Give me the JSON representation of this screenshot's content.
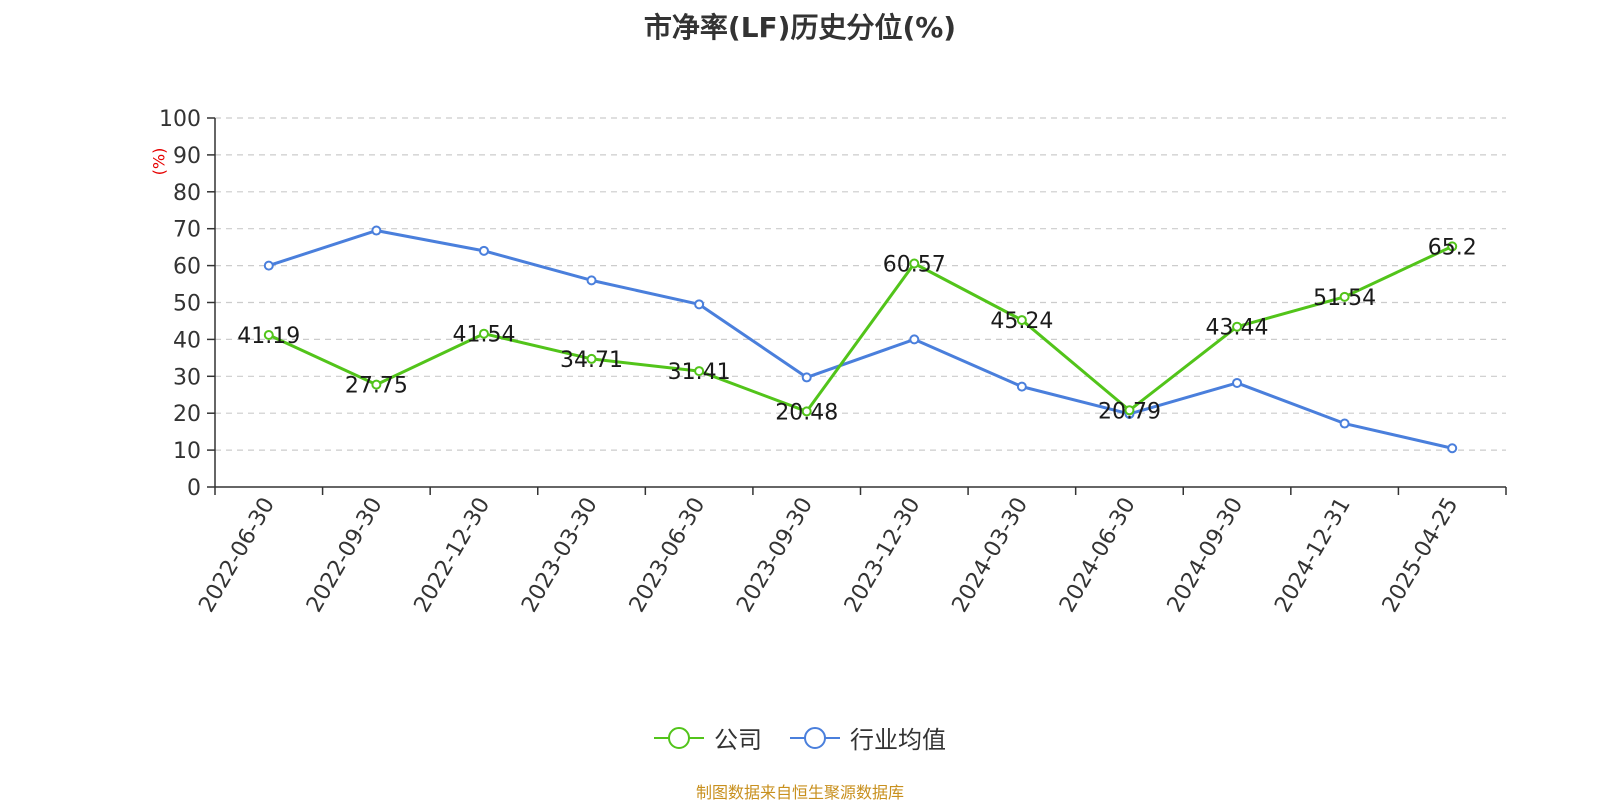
{
  "title": "市净率(LF)历史分位(%)",
  "source": "制图数据来自恒生聚源数据库",
  "chart_data": {
    "type": "line",
    "title": "市净率(LF)历史分位(%)",
    "ylabel": "(%)",
    "xlabel": "",
    "ylim": [
      0,
      100
    ],
    "yticks": [
      0,
      10,
      20,
      30,
      40,
      50,
      60,
      70,
      80,
      90,
      100
    ],
    "grid": true,
    "legend_position": "bottom",
    "categories": [
      "2022-06-30",
      "2022-09-30",
      "2022-12-30",
      "2023-03-30",
      "2023-06-30",
      "2023-09-30",
      "2023-12-30",
      "2024-03-30",
      "2024-06-30",
      "2024-09-30",
      "2024-12-31",
      "2025-04-25"
    ],
    "series": [
      {
        "name": "公司",
        "color": "#52c41a",
        "show_labels": true,
        "values": [
          41.19,
          27.75,
          41.54,
          34.71,
          31.41,
          20.48,
          60.57,
          45.24,
          20.79,
          43.44,
          51.54,
          65.2
        ]
      },
      {
        "name": "行业均值",
        "color": "#4a7fdc",
        "show_labels": false,
        "values": [
          60.0,
          69.5,
          64.0,
          56.0,
          49.5,
          29.7,
          40.0,
          27.2,
          19.8,
          28.2,
          17.2,
          10.5
        ]
      }
    ]
  }
}
